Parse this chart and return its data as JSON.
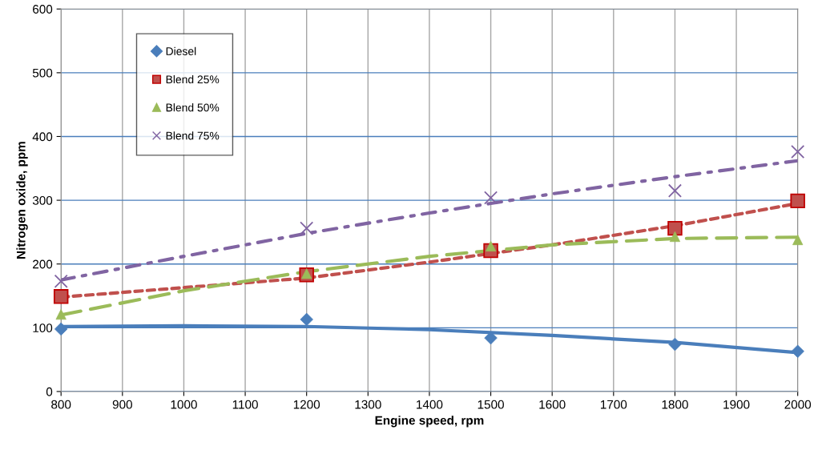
{
  "chart_data": {
    "type": "scatter",
    "xlabel": "Engine speed, rpm",
    "ylabel": "Nitrogen oxide, ppm",
    "xlim": [
      800,
      2000
    ],
    "xticks": [
      800,
      900,
      1000,
      1100,
      1200,
      1300,
      1400,
      1500,
      1600,
      1700,
      1800,
      1900,
      2000
    ],
    "ylim": [
      0,
      600
    ],
    "yticks": [
      0,
      100,
      200,
      300,
      400,
      500,
      600
    ],
    "grid": true,
    "legend": "top left",
    "series": [
      {
        "name": "Diesel",
        "marker": "diamond",
        "color": "#4a7ebb",
        "x": [
          800,
          1200,
          1500,
          1800,
          2000
        ],
        "values": [
          98,
          113,
          84,
          74,
          63
        ]
      },
      {
        "name": "Blend 25%",
        "marker": "square",
        "color": "#c0504d",
        "x": [
          800,
          1200,
          1500,
          1800,
          2000
        ],
        "values": [
          149,
          183,
          221,
          256,
          299
        ]
      },
      {
        "name": "Blend 50%",
        "marker": "triangle",
        "color": "#9bbb59",
        "x": [
          800,
          1200,
          1500,
          1800,
          2000
        ],
        "values": [
          121,
          185,
          228,
          243,
          238
        ]
      },
      {
        "name": "Blend 75%",
        "marker": "cross",
        "color": "#8064a2",
        "x": [
          800,
          1200,
          1500,
          1800,
          2000
        ],
        "values": [
          173,
          256,
          304,
          315,
          376
        ]
      },
      {
        "type": "line",
        "marker": "none",
        "line_style": "solid",
        "color": "#4a7ebb",
        "x": [
          800,
          1000,
          1200,
          1400,
          1600,
          1800,
          2000
        ],
        "values": [
          102,
          103,
          102,
          97,
          88,
          77,
          61
        ]
      },
      {
        "type": "line",
        "marker": "none",
        "line_style": "dotted",
        "color": "#c0504d",
        "x": [
          800,
          1000,
          1200,
          1400,
          1600,
          1800,
          2000
        ],
        "values": [
          148,
          163,
          178,
          203,
          230,
          260,
          295
        ]
      },
      {
        "type": "line",
        "marker": "none",
        "line_style": "dashed",
        "color": "#9bbb59",
        "x": [
          800,
          1000,
          1200,
          1400,
          1600,
          1800,
          2000
        ],
        "values": [
          120,
          158,
          188,
          212,
          230,
          240,
          242
        ]
      },
      {
        "type": "line",
        "marker": "none",
        "line_style": "dashdot",
        "color": "#8064a2",
        "x": [
          800,
          1000,
          1200,
          1400,
          1600,
          1800,
          2000
        ],
        "values": [
          175,
          212,
          248,
          280,
          310,
          337,
          362
        ]
      }
    ]
  }
}
